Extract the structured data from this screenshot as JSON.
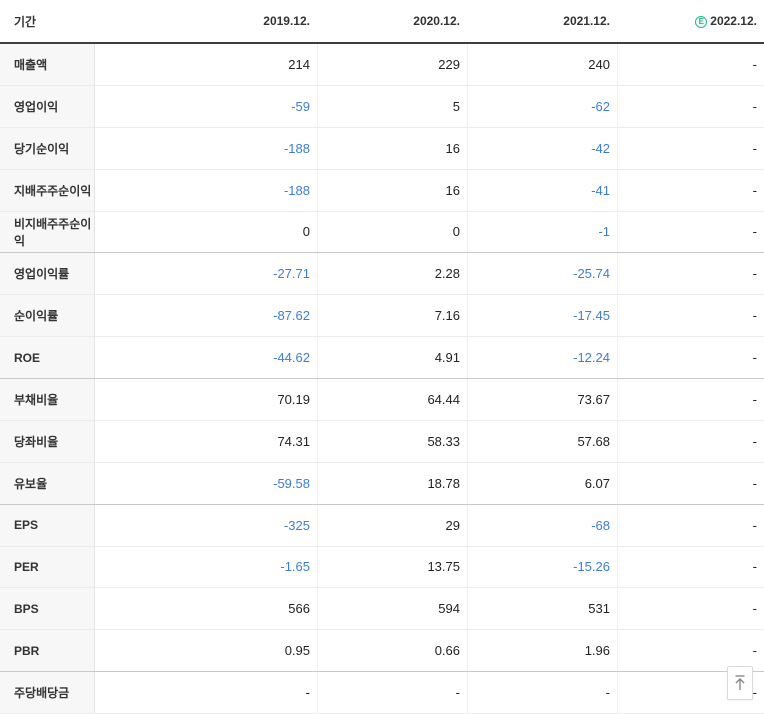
{
  "table": {
    "period_label": "기간",
    "estimate_badge": "E",
    "columns": [
      "2019.12.",
      "2020.12.",
      "2021.12.",
      "2022.12."
    ],
    "rows": [
      {
        "label": "매출액",
        "values": [
          "214",
          "229",
          "240",
          "-"
        ]
      },
      {
        "label": "영업이익",
        "values": [
          "-59",
          "5",
          "-62",
          "-"
        ]
      },
      {
        "label": "당기순이익",
        "values": [
          "-188",
          "16",
          "-42",
          "-"
        ]
      },
      {
        "label": "지배주주순이익",
        "values": [
          "-188",
          "16",
          "-41",
          "-"
        ]
      },
      {
        "label": "비지배주주순이익",
        "values": [
          "0",
          "0",
          "-1",
          "-"
        ],
        "group_end": true
      },
      {
        "label": "영업이익률",
        "values": [
          "-27.71",
          "2.28",
          "-25.74",
          "-"
        ]
      },
      {
        "label": "순이익률",
        "values": [
          "-87.62",
          "7.16",
          "-17.45",
          "-"
        ]
      },
      {
        "label": "ROE",
        "values": [
          "-44.62",
          "4.91",
          "-12.24",
          "-"
        ],
        "group_end": true
      },
      {
        "label": "부채비율",
        "values": [
          "70.19",
          "64.44",
          "73.67",
          "-"
        ]
      },
      {
        "label": "당좌비율",
        "values": [
          "74.31",
          "58.33",
          "57.68",
          "-"
        ]
      },
      {
        "label": "유보율",
        "values": [
          "-59.58",
          "18.78",
          "6.07",
          "-"
        ],
        "group_end": true
      },
      {
        "label": "EPS",
        "values": [
          "-325",
          "29",
          "-68",
          "-"
        ]
      },
      {
        "label": "PER",
        "values": [
          "-1.65",
          "13.75",
          "-15.26",
          "-"
        ]
      },
      {
        "label": "BPS",
        "values": [
          "566",
          "594",
          "531",
          "-"
        ]
      },
      {
        "label": "PBR",
        "values": [
          "0.95",
          "0.66",
          "1.96",
          "-"
        ],
        "group_end": true
      },
      {
        "label": "주당배당금",
        "values": [
          "-",
          "-",
          "-",
          "-"
        ]
      }
    ],
    "colors": {
      "negative_value": "#3b7ddd",
      "estimate_green": "#27b98b",
      "header_border": "#3e3e3e",
      "label_bg": "#f7f7f7"
    }
  },
  "scroll_top_button": {
    "label": "scroll-to-top"
  }
}
